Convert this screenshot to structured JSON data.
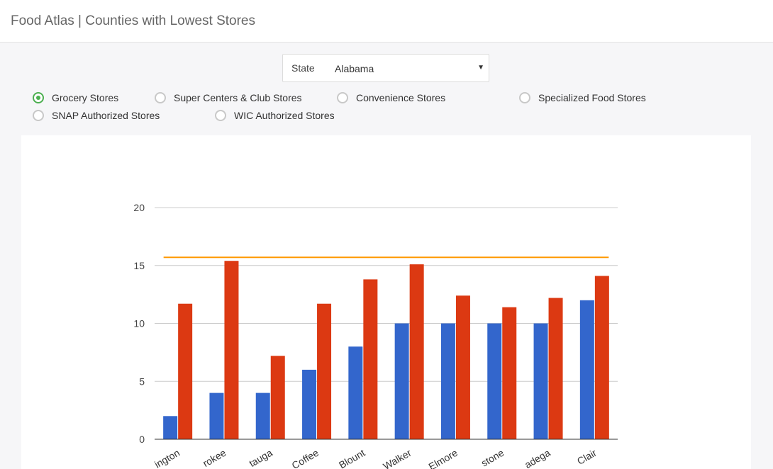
{
  "header": {
    "title": "Food Atlas | Counties with Lowest Stores"
  },
  "state_filter": {
    "label": "State",
    "value": "Alabama"
  },
  "store_types": [
    {
      "label": "Grocery Stores",
      "checked": true
    },
    {
      "label": "Super Centers & Club Stores",
      "checked": false
    },
    {
      "label": "Convenience Stores",
      "checked": false
    },
    {
      "label": "Specialized Food Stores",
      "checked": false
    },
    {
      "label": "SNAP Authorized Stores",
      "checked": false
    },
    {
      "label": "WIC Authorized Stores",
      "checked": false
    }
  ],
  "colors": {
    "series_1": "#3366cc",
    "series_2": "#dc3912",
    "reference_line": "#ff9900",
    "accent": "#4caf50"
  },
  "chart_data": {
    "type": "bar",
    "categories": [
      "Washington",
      "Cherokee",
      "Autauga",
      "Coffee",
      "Blount",
      "Walker",
      "Elmore",
      "Limestone",
      "Talladega",
      "St. Clair"
    ],
    "category_labels_visible": [
      "ington",
      "rokee",
      "tauga",
      "Coffee",
      "Blount",
      "Walker",
      "Elmore",
      "stone",
      "adega",
      "Clair"
    ],
    "series": [
      {
        "values": [
          2,
          4,
          4,
          6,
          8,
          10,
          10,
          10,
          10,
          12
        ]
      },
      {
        "values": [
          11.7,
          15.4,
          7.2,
          11.7,
          13.8,
          15.1,
          12.4,
          11.4,
          12.2,
          14.1
        ]
      }
    ],
    "reference_line": 15.7,
    "ylim": [
      0,
      20
    ],
    "yticks": [
      0,
      5,
      10,
      15,
      20
    ],
    "grid": true
  }
}
